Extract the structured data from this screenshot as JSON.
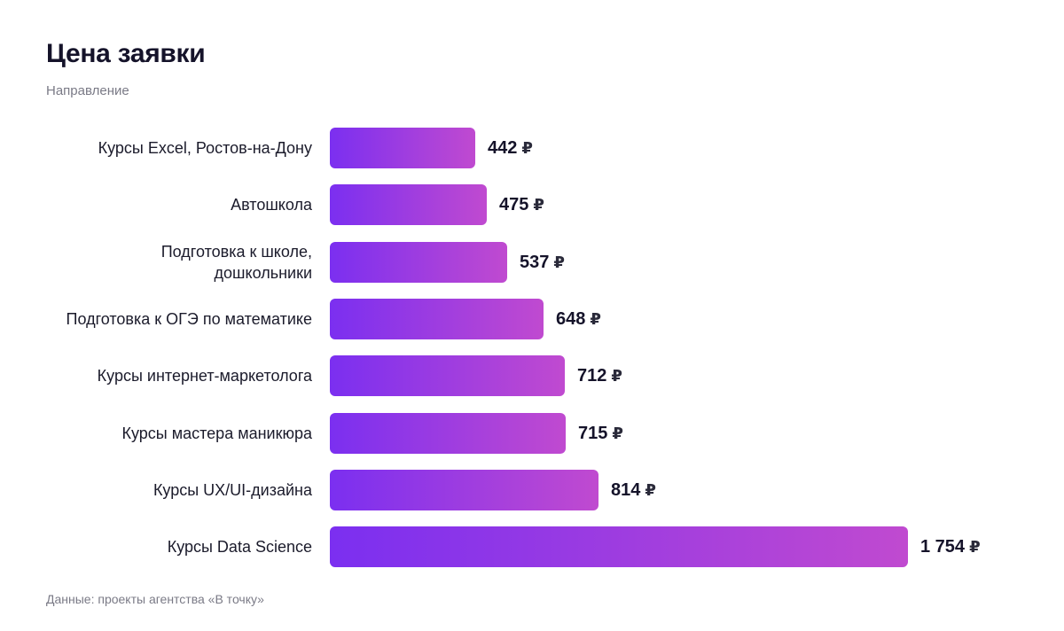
{
  "header": {
    "title": "Цена заявки",
    "subtitle": "Направление"
  },
  "footer": {
    "source": "Данные: проекты агентства «В точку»"
  },
  "chart_data": {
    "type": "bar",
    "orientation": "horizontal",
    "title": "Цена заявки",
    "ylabel": "Направление",
    "unit": "₽",
    "categories": [
      "Курсы Excel, Ростов-на-Дону",
      "Автошкола",
      "Подготовка к школе, дошкольники",
      "Подготовка к ОГЭ по математике",
      "Курсы интернет-маркетолога",
      "Курсы мастера маникюра",
      "Курсы UX/UI-дизайна",
      "Курсы Data Science"
    ],
    "category_lines": [
      [
        "Курсы Excel, Ростов-на-Дону"
      ],
      [
        "Автошкола"
      ],
      [
        "Подготовка к школе,",
        "дошкольники"
      ],
      [
        "Подготовка к ОГЭ по математике"
      ],
      [
        "Курсы интернет-маркетолога"
      ],
      [
        "Курсы мастера маникюра"
      ],
      [
        "Курсы UX/UI-дизайна"
      ],
      [
        "Курсы Data Science"
      ]
    ],
    "values": [
      442,
      475,
      537,
      648,
      712,
      715,
      814,
      1754
    ],
    "value_labels": [
      "442",
      "475",
      "537",
      "648",
      "712",
      "715",
      "814",
      "1 754"
    ],
    "xlim": [
      0,
      1754
    ],
    "grid": false,
    "colors": {
      "bar_start": "#7b2ff0",
      "bar_end": "#c04ad0"
    }
  }
}
